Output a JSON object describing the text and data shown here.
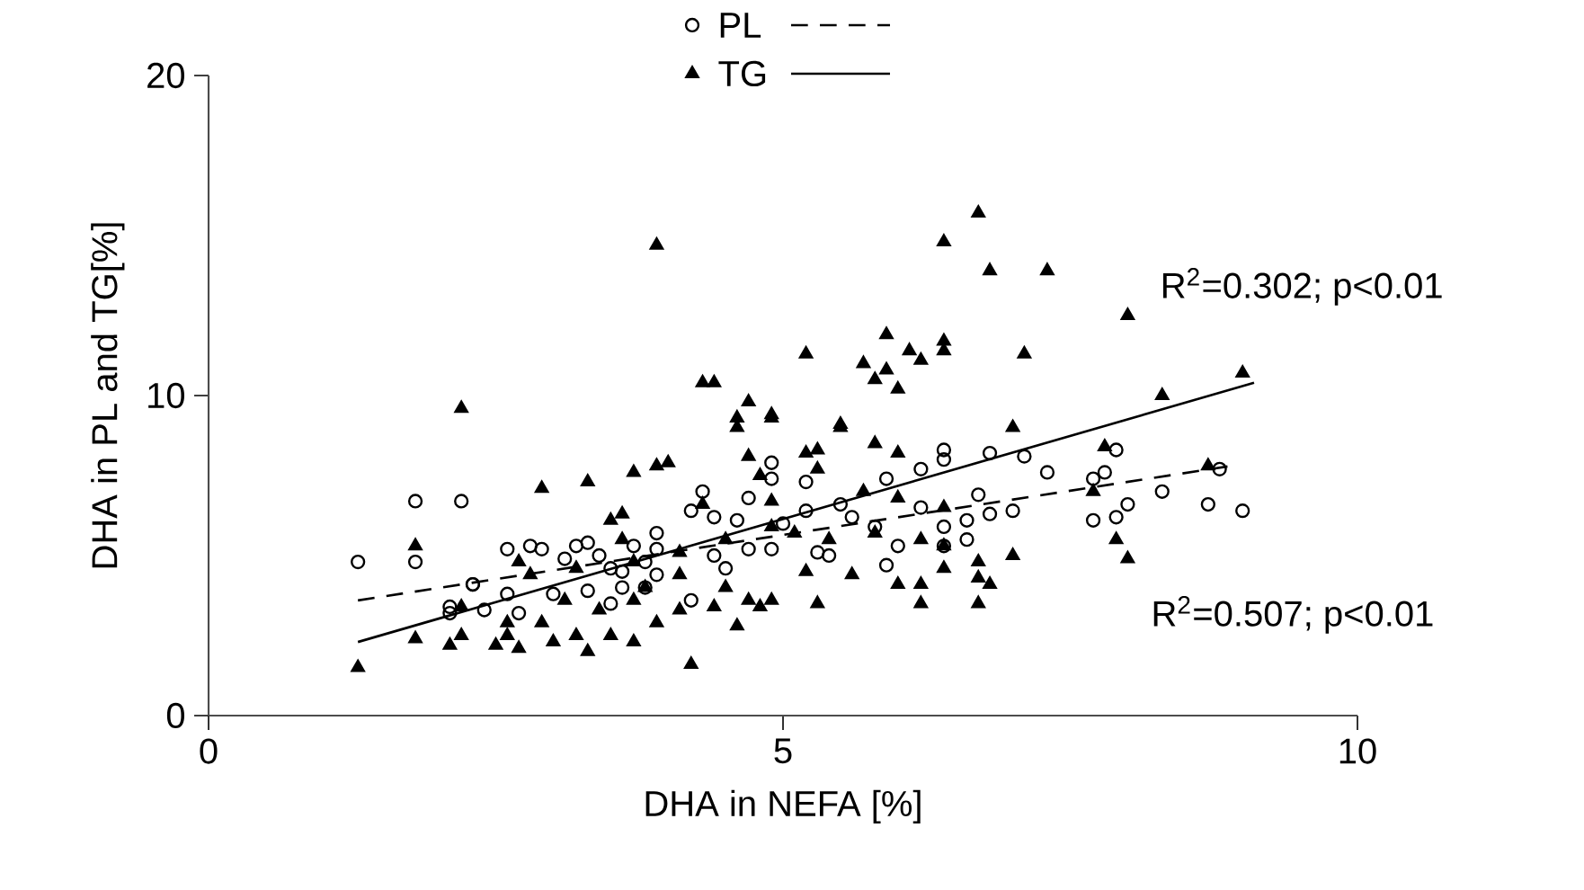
{
  "chart_data": {
    "type": "scatter",
    "xlabel": "DHA in NEFA [%]",
    "ylabel": "DHA in PL and TG[%]",
    "xlim": [
      0,
      10
    ],
    "ylim": [
      0,
      20
    ],
    "xticks": [
      0,
      5,
      10
    ],
    "yticks": [
      0,
      10,
      20
    ],
    "grid": false,
    "legend": "top",
    "annotations": [
      "R$^{2}$=0.302; p<0.01",
      "R$^{2}$=0.507; p<0.01"
    ],
    "series": [
      {
        "name": "PL",
        "color": "#000000",
        "marker": "circle",
        "x": [
          1.3,
          1.8,
          2.2,
          1.8,
          2.6,
          2.8,
          2.9,
          3.2,
          3.3,
          2.3,
          2.3,
          2.1,
          2.1,
          2.4,
          2.6,
          2.7,
          3.0,
          3.1,
          3.5,
          3.6,
          3.8,
          3.9,
          3.9,
          6.4,
          6.4,
          6.8,
          7.1,
          7.3,
          7.8,
          7.7,
          4.9,
          4.9,
          5.2,
          4.3,
          6.2,
          5.9,
          6.2,
          6.7,
          7.0,
          6.8,
          6.6,
          6.4,
          6.6,
          5.5,
          5.2,
          5.0,
          4.7,
          4.6,
          4.4,
          4.2,
          4.4,
          4.5,
          4.7,
          4.9,
          5.3,
          5.4,
          5.6,
          5.8,
          6.0,
          5.9,
          6.4,
          4.2,
          3.9,
          3.8,
          7.9,
          7.7,
          8.0,
          7.9,
          8.3,
          8.7,
          8.8,
          9.0,
          3.4,
          3.6,
          3.7,
          3.5,
          3.3
        ],
        "values": [
          4.8,
          6.7,
          6.7,
          4.8,
          5.2,
          5.3,
          5.2,
          5.3,
          5.4,
          4.1,
          4.1,
          3.4,
          3.2,
          3.3,
          3.8,
          3.2,
          3.8,
          4.9,
          4.6,
          4.0,
          4.0,
          5.2,
          5.7,
          8.3,
          8.0,
          8.2,
          8.1,
          7.6,
          7.6,
          6.1,
          7.9,
          7.4,
          7.3,
          7.0,
          7.7,
          7.4,
          6.5,
          6.9,
          6.4,
          6.3,
          6.1,
          5.9,
          5.5,
          6.6,
          6.4,
          6.0,
          6.8,
          6.1,
          6.2,
          6.4,
          5.0,
          4.6,
          5.2,
          5.2,
          5.1,
          5.0,
          6.2,
          5.9,
          5.3,
          4.7,
          5.3,
          3.6,
          4.4,
          4.8,
          8.3,
          7.4,
          6.6,
          6.2,
          7.0,
          6.6,
          7.7,
          6.4,
          5.0,
          4.5,
          5.3,
          3.5,
          3.9
        ]
      },
      {
        "name": "TG",
        "color": "#000000",
        "marker": "triangle",
        "x": [
          3.9,
          2.2,
          2.9,
          3.3,
          3.7,
          3.9,
          1.8,
          1.3,
          1.8,
          2.1,
          2.2,
          2.5,
          2.6,
          2.7,
          2.6,
          2.9,
          3.0,
          3.2,
          3.3,
          3.5,
          3.7,
          3.9,
          2.7,
          2.8,
          2.2,
          3.2,
          3.5,
          3.6,
          3.6,
          3.7,
          3.1,
          3.4,
          3.7,
          3.8,
          6.7,
          6.4,
          6.8,
          7.3,
          5.9,
          6.1,
          6.2,
          6.4,
          6.4,
          5.2,
          5.7,
          5.9,
          5.8,
          6.0,
          7.1,
          4.3,
          4.4,
          4.7,
          4.6,
          4.6,
          4.9,
          4.9,
          5.5,
          5.5,
          7.0,
          4.0,
          4.7,
          5.2,
          5.3,
          5.8,
          6.0,
          4.8,
          5.3,
          4.3,
          4.9,
          5.7,
          6.0,
          6.4,
          7.8,
          7.7,
          4.1,
          4.5,
          4.9,
          5.1,
          5.4,
          5.8,
          6.2,
          6.4,
          6.7,
          7.0,
          5.2,
          5.6,
          6.0,
          6.2,
          6.4,
          6.7,
          6.8,
          6.2,
          6.7,
          5.3,
          4.9,
          4.8,
          4.7,
          4.4,
          4.1,
          4.6,
          4.2,
          4.5,
          4.1,
          8.0,
          9.0,
          8.3,
          7.9,
          8.0,
          8.7
        ],
        "values": [
          14.7,
          9.6,
          7.1,
          7.3,
          7.6,
          7.8,
          5.3,
          1.5,
          2.4,
          2.2,
          2.5,
          2.2,
          2.5,
          2.1,
          2.9,
          2.9,
          2.3,
          2.5,
          2.0,
          2.5,
          2.3,
          2.9,
          4.8,
          4.4,
          3.4,
          4.6,
          6.1,
          6.3,
          5.5,
          4.8,
          3.6,
          3.3,
          3.6,
          4.0,
          15.7,
          14.8,
          13.9,
          13.9,
          11.9,
          11.4,
          11.1,
          11.7,
          11.4,
          11.3,
          11.0,
          10.8,
          10.5,
          10.2,
          11.3,
          10.4,
          10.4,
          9.8,
          9.3,
          9.0,
          9.3,
          9.4,
          9.1,
          9.0,
          9.0,
          7.9,
          8.1,
          8.2,
          8.3,
          8.5,
          8.2,
          7.5,
          7.7,
          6.6,
          6.7,
          7.0,
          6.8,
          6.5,
          8.4,
          7.0,
          5.1,
          5.5,
          5.9,
          5.7,
          5.5,
          5.7,
          5.5,
          5.3,
          4.8,
          5.0,
          4.5,
          4.4,
          4.1,
          4.1,
          4.6,
          4.3,
          4.1,
          3.5,
          3.5,
          3.5,
          3.6,
          3.4,
          3.6,
          3.4,
          3.3,
          2.8,
          1.6,
          4.0,
          4.4,
          12.5,
          10.7,
          10.0,
          5.5,
          4.9,
          7.8
        ]
      },
      {
        "type": "line",
        "color": "#000000",
        "line_style": "dashed",
        "marker": "none",
        "x": [
          1.3,
          8.9
        ],
        "values": [
          3.6,
          7.8
        ]
      },
      {
        "type": "line",
        "color": "#000000",
        "line_style": "solid",
        "marker": "none",
        "x": [
          1.3,
          9.1
        ],
        "values": [
          2.3,
          10.4
        ]
      }
    ]
  }
}
